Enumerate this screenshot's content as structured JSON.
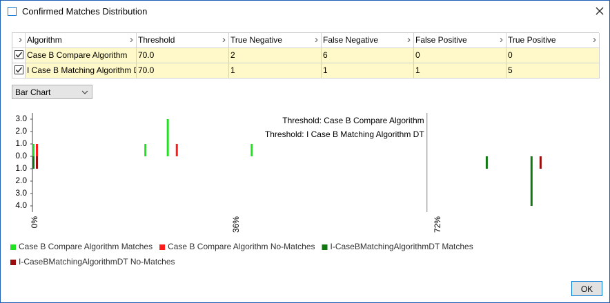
{
  "window": {
    "title": "Confirmed Matches Distribution"
  },
  "table": {
    "columns": [
      "Algorithm",
      "Threshold",
      "True Negative",
      "False Negative",
      "False Positive",
      "True Positive"
    ],
    "rows": [
      {
        "checked": true,
        "cells": [
          "Case B Compare Algorithm",
          "70.0",
          "2",
          "6",
          "0",
          "0"
        ]
      },
      {
        "checked": true,
        "cells": [
          "I Case B Matching Algorithm DT",
          "70.0",
          "1",
          "1",
          "1",
          "5"
        ]
      }
    ]
  },
  "dropdown": {
    "value": "Bar Chart"
  },
  "chart_data": {
    "type": "bar",
    "xlim": [
      0,
      100
    ],
    "xticks": [
      {
        "value": 0,
        "label": "0%"
      },
      {
        "value": 36,
        "label": "36%"
      },
      {
        "value": 72,
        "label": "72%"
      }
    ],
    "ylim": [
      -4.5,
      3.5
    ],
    "yticks": [
      {
        "value": 3,
        "label": "3.0"
      },
      {
        "value": 2,
        "label": "2.0"
      },
      {
        "value": 1,
        "label": "1.0"
      },
      {
        "value": 0,
        "label": "0.0"
      },
      {
        "value": -1,
        "label": "1.0"
      },
      {
        "value": -2,
        "label": "2.0"
      },
      {
        "value": -3,
        "label": "3.0"
      },
      {
        "value": -4,
        "label": "4.0"
      }
    ],
    "thresholds": [
      {
        "value": 70,
        "label": "Threshold: Case B Compare Algorithm"
      },
      {
        "value": 70,
        "label": "Threshold: I Case B Matching Algorithm DT"
      }
    ],
    "series": [
      {
        "name": "Case B Compare Algorithm Matches",
        "color": "#22e022",
        "x": [
          0,
          20,
          24,
          39
        ],
        "values": [
          1,
          1,
          3,
          1
        ]
      },
      {
        "name": "Case B Compare Algorithm No-Matches",
        "color": "#ff1a1a",
        "x": [
          0,
          25
        ],
        "values": [
          1,
          1
        ]
      },
      {
        "name": "I-CaseBMatchingAlgorithmDT Matches",
        "color": "#117711",
        "x": [
          0,
          81,
          89
        ],
        "values": [
          -1,
          -1,
          -4
        ]
      },
      {
        "name": "I-CaseBMatchingAlgorithmDT No-Matches",
        "color": "#9b0d0d",
        "x": [
          0,
          90
        ],
        "values": [
          -1,
          -1
        ]
      }
    ]
  },
  "button": {
    "label": "OK"
  }
}
